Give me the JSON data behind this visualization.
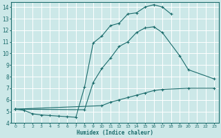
{
  "xlabel": "Humidex (Indice chaleur)",
  "bg_color": "#cce8e8",
  "grid_color": "#ffffff",
  "line_color": "#1a6b6b",
  "xlim": [
    -0.5,
    23.5
  ],
  "ylim": [
    4,
    14.4
  ],
  "xticks": [
    0,
    1,
    2,
    3,
    4,
    5,
    6,
    7,
    8,
    9,
    10,
    11,
    12,
    13,
    14,
    15,
    16,
    17,
    18,
    19,
    20,
    21,
    22,
    23
  ],
  "yticks": [
    4,
    5,
    6,
    7,
    8,
    9,
    10,
    11,
    12,
    13,
    14
  ],
  "series": [
    {
      "x": [
        0,
        1,
        2,
        3,
        4,
        5,
        6,
        7,
        8,
        9,
        10,
        11,
        12,
        13,
        14,
        15,
        16,
        17,
        18
      ],
      "y": [
        5.2,
        5.1,
        4.8,
        4.7,
        4.65,
        4.6,
        4.55,
        4.5,
        7.1,
        10.9,
        11.5,
        12.4,
        12.6,
        13.4,
        13.5,
        14.0,
        14.2,
        14.0,
        13.4
      ]
    },
    {
      "x": [
        0,
        8,
        9,
        10,
        11,
        12,
        13,
        14,
        15,
        16,
        17,
        19,
        20,
        23
      ],
      "y": [
        5.2,
        5.15,
        7.5,
        8.7,
        9.6,
        10.6,
        11.0,
        11.8,
        12.2,
        12.3,
        11.8,
        9.8,
        8.6,
        7.8
      ]
    },
    {
      "x": [
        0,
        10,
        11,
        12,
        13,
        14,
        15,
        16,
        17,
        20,
        23
      ],
      "y": [
        5.2,
        5.5,
        5.8,
        6.0,
        6.2,
        6.4,
        6.6,
        6.8,
        6.9,
        7.0,
        7.0
      ]
    }
  ]
}
